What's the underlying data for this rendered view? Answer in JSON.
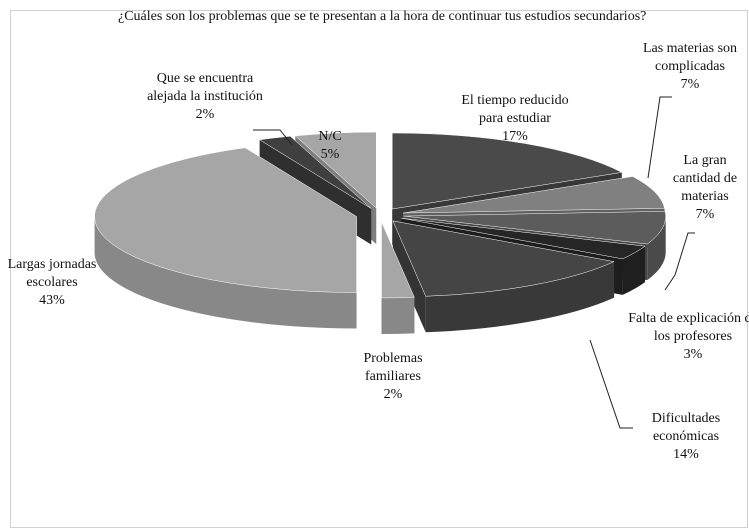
{
  "chart_data": {
    "type": "pie",
    "title": "¿Cuáles son los problemas que se te presentan a la hora de continuar tus estudios secundarios?",
    "categories": [
      "El tiempo reducido para estudiar",
      "Las materias son complicadas",
      "La gran cantidad de materias",
      "Falta de explicación de los profesores",
      "Dificultades económicas",
      "Problemas familiares",
      "Largas jornadas escolares",
      "Que se encuentra alejada la institución",
      "N/C"
    ],
    "values": [
      17,
      7,
      7,
      3,
      14,
      2,
      43,
      2,
      5
    ],
    "value_labels": [
      "17%",
      "7%",
      "7%",
      "3%",
      "14%",
      "2%",
      "43%",
      "2%",
      "5%"
    ],
    "colors": [
      "#4a4a4a",
      "#808080",
      "#5c5c5c",
      "#262626",
      "#454545",
      "#a6a6a6",
      "#a6a6a6",
      "#3f3f3f",
      "#a6a6a6"
    ]
  }
}
